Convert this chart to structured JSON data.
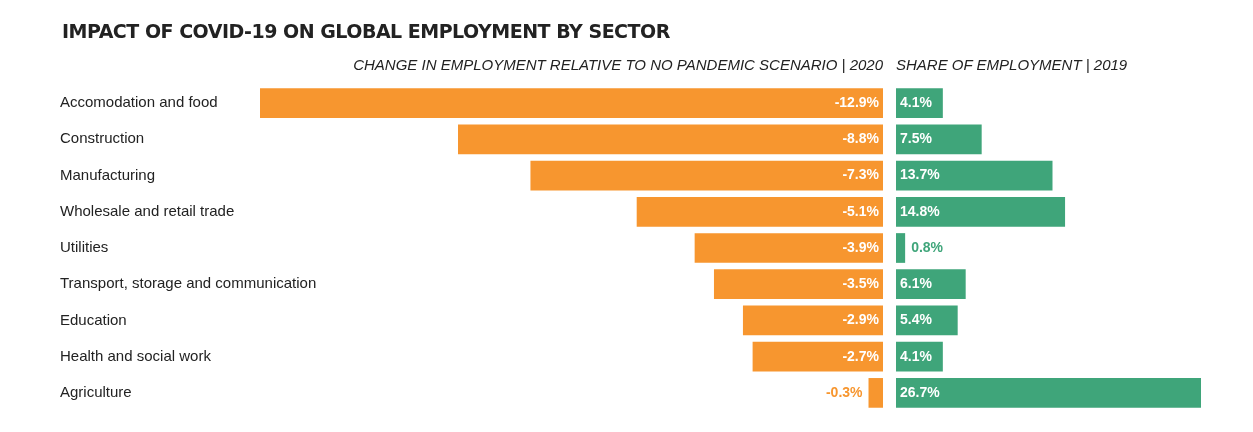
{
  "chart_data": [
    {
      "type": "bar",
      "orientation": "horizontal",
      "title": "IMPACT OF COVID-19 ON GLOBAL EMPLOYMENT BY SECTOR",
      "subtitle": "CHANGE IN EMPLOYMENT RELATIVE TO NO PANDEMIC SCENARIO | 2020",
      "categories": [
        "Accomodation and food",
        "Construction",
        "Manufacturing",
        "Wholesale and retail trade",
        "Utilities",
        "Transport, storage and communication",
        "Education",
        "Health and social work",
        "Agriculture"
      ],
      "values": [
        -12.9,
        -8.8,
        -7.3,
        -5.1,
        -3.9,
        -3.5,
        -2.9,
        -2.7,
        -0.3
      ],
      "value_labels": [
        "-12.9%",
        "-8.8%",
        "-7.3%",
        "-5.1%",
        "-3.9%",
        "-3.5%",
        "-2.9%",
        "-2.7%",
        "-0.3%"
      ],
      "color": "#f7962f",
      "tick_labels": "y"
    },
    {
      "type": "bar",
      "orientation": "horizontal",
      "subtitle": "SHARE OF EMPLOYMENT | 2019",
      "categories": [
        null,
        null,
        null,
        null,
        null,
        null,
        null,
        null,
        null
      ],
      "values": [
        4.1,
        7.5,
        13.7,
        14.8,
        0.8,
        6.1,
        5.4,
        4.1,
        26.7
      ],
      "value_labels": [
        "4.1%",
        "7.5%",
        "13.7%",
        "14.8%",
        "0.8%",
        "6.1%",
        "5.4%",
        "4.1%",
        "26.7%"
      ],
      "color": "#3fa57a",
      "tick_labels": false
    }
  ]
}
